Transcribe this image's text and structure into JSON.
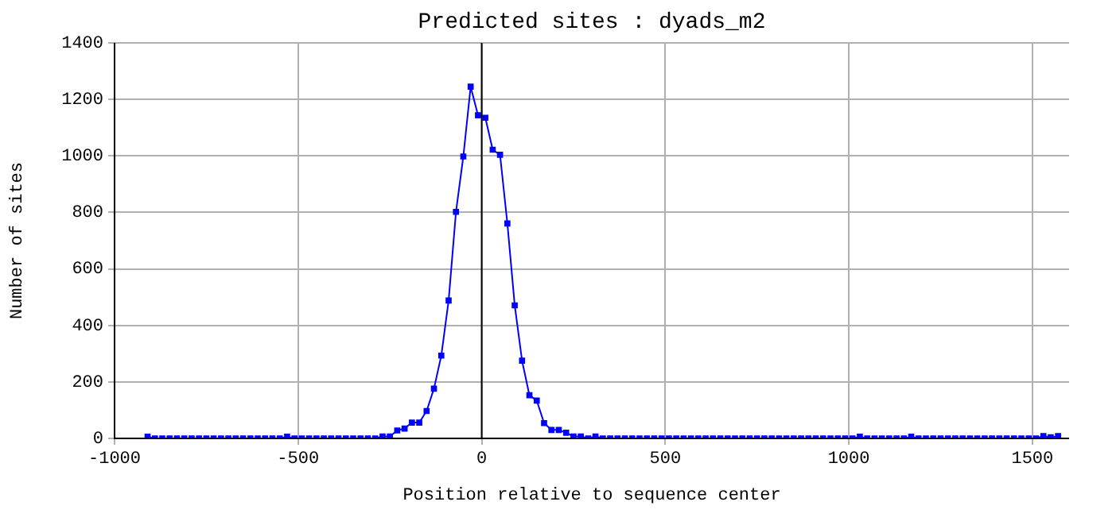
{
  "chart_data": {
    "type": "line",
    "title": "Predicted sites : dyads_m2",
    "xlabel": "Position relative to sequence center",
    "ylabel": "Number of sites",
    "x": [
      -910,
      -890,
      -870,
      -850,
      -830,
      -810,
      -790,
      -770,
      -750,
      -730,
      -710,
      -690,
      -670,
      -650,
      -630,
      -610,
      -590,
      -570,
      -550,
      -530,
      -510,
      -490,
      -470,
      -450,
      -430,
      -410,
      -390,
      -370,
      -350,
      -330,
      -310,
      -290,
      -270,
      -250,
      -230,
      -210,
      -190,
      -170,
      -150,
      -130,
      -110,
      -90,
      -70,
      -50,
      -30,
      -10,
      10,
      30,
      50,
      70,
      90,
      110,
      130,
      150,
      170,
      190,
      210,
      230,
      250,
      270,
      290,
      310,
      330,
      350,
      370,
      390,
      410,
      430,
      450,
      470,
      490,
      510,
      530,
      550,
      570,
      590,
      610,
      630,
      650,
      670,
      690,
      710,
      730,
      750,
      770,
      790,
      810,
      830,
      850,
      870,
      890,
      910,
      930,
      950,
      970,
      990,
      1010,
      1030,
      1050,
      1070,
      1090,
      1110,
      1130,
      1150,
      1170,
      1190,
      1210,
      1230,
      1250,
      1270,
      1290,
      1310,
      1330,
      1350,
      1370,
      1390,
      1410,
      1430,
      1450,
      1470,
      1490,
      1510,
      1530,
      1550,
      1570
    ],
    "series": [
      {
        "color": "#0000ff",
        "values": [
          6,
          0,
          0,
          0,
          0,
          0,
          0,
          0,
          0,
          0,
          0,
          0,
          0,
          0,
          0,
          0,
          0,
          0,
          0,
          6,
          0,
          0,
          0,
          0,
          0,
          0,
          0,
          0,
          0,
          0,
          0,
          0,
          7,
          7,
          28,
          35,
          56,
          56,
          97,
          176,
          293,
          488,
          802,
          998,
          1245,
          1144,
          1135,
          1022,
          1004,
          761,
          471,
          275,
          153,
          134,
          54,
          30,
          30,
          20,
          7,
          7,
          0,
          7,
          0,
          0,
          0,
          0,
          0,
          0,
          0,
          0,
          0,
          0,
          0,
          0,
          0,
          0,
          0,
          0,
          0,
          0,
          0,
          0,
          0,
          0,
          0,
          0,
          0,
          0,
          0,
          0,
          0,
          0,
          0,
          0,
          0,
          0,
          0,
          6,
          0,
          0,
          0,
          0,
          0,
          0,
          6,
          0,
          0,
          0,
          0,
          0,
          0,
          0,
          0,
          0,
          0,
          0,
          0,
          0,
          0,
          0,
          0,
          0,
          8,
          4,
          8
        ]
      }
    ],
    "xlim": [
      -1000,
      1600
    ],
    "xticks": [
      -1000,
      -500,
      0,
      500,
      1000,
      1500
    ],
    "ylim": [
      0,
      1400
    ],
    "yticks": [
      0,
      200,
      400,
      600,
      800,
      1000,
      1200,
      1400
    ],
    "ref_lines": [
      {
        "axis": "x",
        "value": 0,
        "color": "#000000"
      }
    ],
    "grid": true,
    "legend": false,
    "marker": "square",
    "line_style": "solid"
  }
}
